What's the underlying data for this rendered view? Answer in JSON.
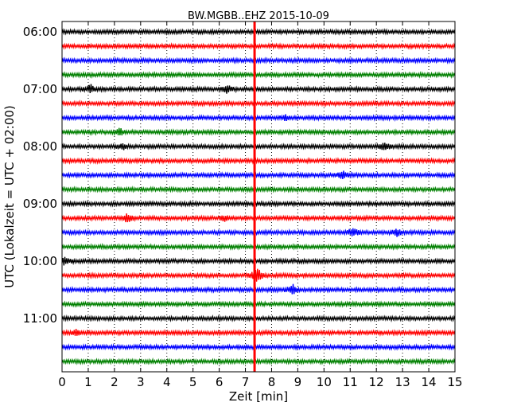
{
  "chart_data": {
    "type": "line",
    "title": "BW.MGBB..EHZ 2015-10-09",
    "xlabel": "Zeit  [min]",
    "ylabel": "UTC (Lokalzeit = UTC + 02:00)",
    "xlim": [
      0,
      15
    ],
    "x_ticks": [
      "0",
      "1",
      "2",
      "3",
      "4",
      "5",
      "6",
      "7",
      "8",
      "9",
      "10",
      "11",
      "12",
      "13",
      "14",
      "15"
    ],
    "y_ticks": [
      "06:00",
      "07:00",
      "08:00",
      "09:00",
      "10:00",
      "11:00"
    ],
    "rows_per_hour": 4,
    "grid": "vertical-dotted",
    "trace_colors": [
      "#000000",
      "#ff0000",
      "#0000ff",
      "#008000"
    ],
    "marker_line": {
      "x": 7.35,
      "color": "#ff0000"
    },
    "events": [
      {
        "row": 4,
        "x": 1.1,
        "amp": 5
      },
      {
        "row": 4,
        "x": 6.3,
        "amp": 5
      },
      {
        "row": 6,
        "x": 8.5,
        "amp": 3
      },
      {
        "row": 7,
        "x": 2.2,
        "amp": 4
      },
      {
        "row": 8,
        "x": 2.3,
        "amp": 4
      },
      {
        "row": 8,
        "x": 12.3,
        "amp": 5
      },
      {
        "row": 10,
        "x": 10.7,
        "amp": 6
      },
      {
        "row": 13,
        "x": 2.5,
        "amp": 6
      },
      {
        "row": 13,
        "x": 6.2,
        "amp": 3
      },
      {
        "row": 14,
        "x": 11.1,
        "amp": 6
      },
      {
        "row": 14,
        "x": 12.8,
        "amp": 4
      },
      {
        "row": 16,
        "x": 0.1,
        "amp": 4
      },
      {
        "row": 17,
        "x": 7.45,
        "amp": 12
      },
      {
        "row": 18,
        "x": 8.8,
        "amp": 8
      },
      {
        "row": 21,
        "x": 0.5,
        "amp": 4
      }
    ]
  }
}
